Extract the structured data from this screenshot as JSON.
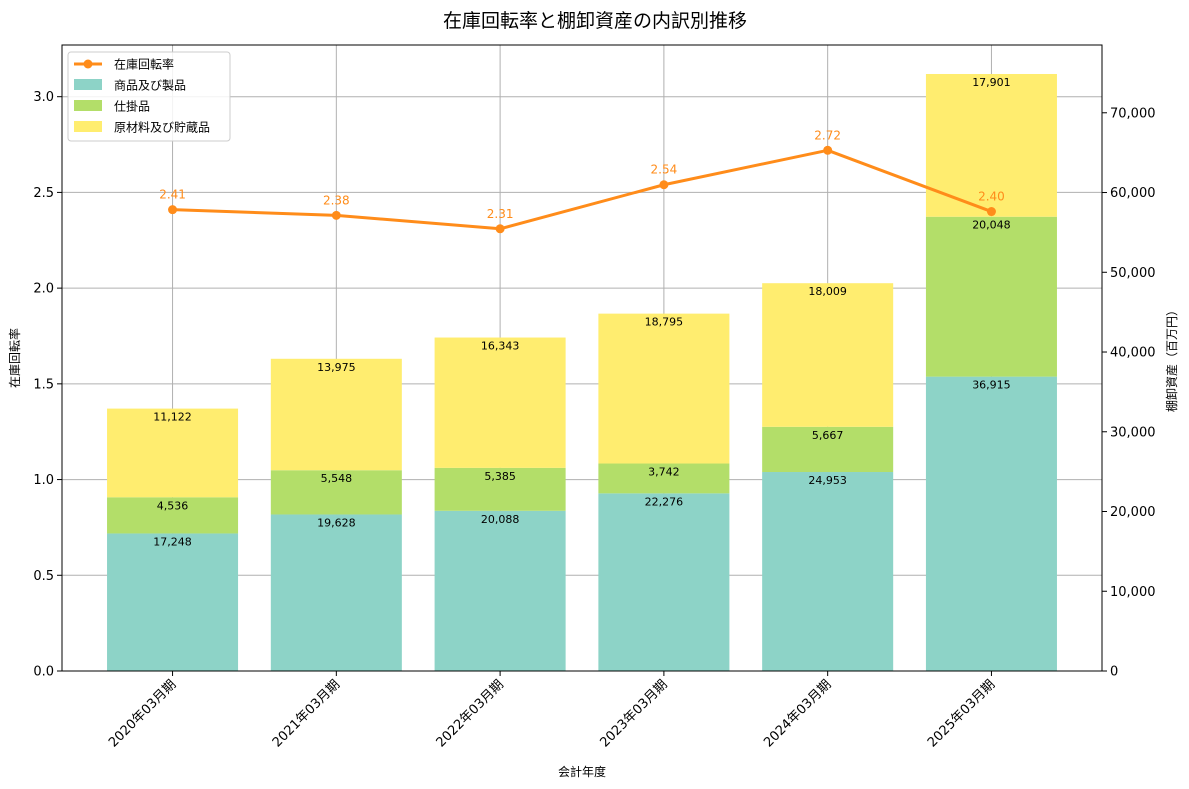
{
  "chart_data": {
    "type": "bar",
    "title": "在庫回転率と棚卸資産の内訳別推移",
    "xlabel": "会計年度",
    "ylabel_left": "在庫回転率",
    "ylabel_right": "棚卸資産（百万円）",
    "categories": [
      "2020年03月期",
      "2021年03月期",
      "2022年03月期",
      "2023年03月期",
      "2024年03月期",
      "2025年03月期"
    ],
    "stacked": true,
    "grid": true,
    "legend_position": "top-left",
    "ylim_left": [
      0,
      3.27
    ],
    "ylim_right": [
      0,
      78500
    ],
    "yticks_left": [
      "0.0",
      "0.5",
      "1.0",
      "1.5",
      "2.0",
      "2.5",
      "3.0"
    ],
    "yticks_right": [
      "0",
      "10,000",
      "20,000",
      "30,000",
      "40,000",
      "50,000",
      "60,000",
      "70,000"
    ],
    "series": [
      {
        "name": "商品及び製品",
        "color": "#8dd3c7",
        "values": [
          17248,
          19628,
          20088,
          22276,
          24953,
          36915
        ],
        "labels": [
          "17,248",
          "19,628",
          "20,088",
          "22,276",
          "24,953",
          "36,915"
        ]
      },
      {
        "name": "仕掛品",
        "color": "#b3de69",
        "values": [
          4536,
          5548,
          5385,
          3742,
          5667,
          20048
        ],
        "labels": [
          "4,536",
          "5,548",
          "5,385",
          "3,742",
          "5,667",
          "20,048"
        ]
      },
      {
        "name": "原材料及び貯蔵品",
        "color": "#ffed6f",
        "values": [
          11122,
          13975,
          16343,
          18795,
          18009,
          17901
        ],
        "labels": [
          "11,122",
          "13,975",
          "16,343",
          "18,795",
          "18,009",
          "17,901"
        ]
      }
    ],
    "line_series": {
      "name": "在庫回転率",
      "color": "#ff8c1a",
      "values": [
        2.41,
        2.38,
        2.31,
        2.54,
        2.72,
        2.4
      ],
      "labels": [
        "2.41",
        "2.38",
        "2.31",
        "2.54",
        "2.72",
        "2.40"
      ]
    }
  }
}
